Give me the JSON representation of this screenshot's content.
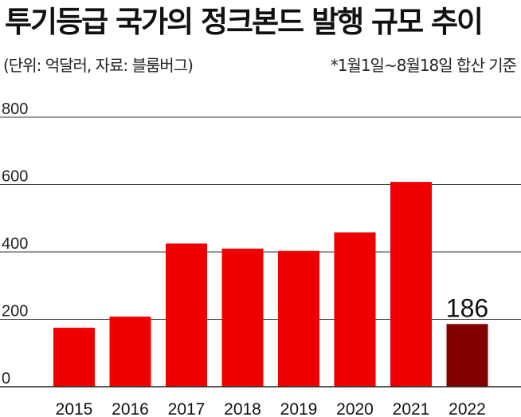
{
  "header": {
    "title": "투기등급 국가의 정크본드 발행 규모 추이",
    "subtitle_left": "(단위: 억달러, 자료: 블룸버그)",
    "subtitle_right": "*1월1일~8월18일 합산 기준"
  },
  "colors": {
    "bar": "#ee0000",
    "highlight_bar": "#800000",
    "gridline": "#333333",
    "axis": "#222222"
  },
  "chart_data": {
    "type": "bar",
    "title": "투기등급 국가의 정크본드 발행 규모 추이",
    "xlabel": "",
    "ylabel": "",
    "categories": [
      "2015",
      "2016",
      "2017",
      "2018",
      "2019",
      "2020",
      "2021",
      "2022"
    ],
    "values": [
      175,
      208,
      425,
      410,
      403,
      458,
      608,
      186
    ],
    "ylim": [
      0,
      800
    ],
    "yticks": [
      0,
      200,
      400,
      600,
      800
    ],
    "grid": true,
    "legend": "none",
    "highlight_index": 7,
    "data_labels": [
      {
        "category": "2022",
        "text": "186"
      }
    ]
  }
}
